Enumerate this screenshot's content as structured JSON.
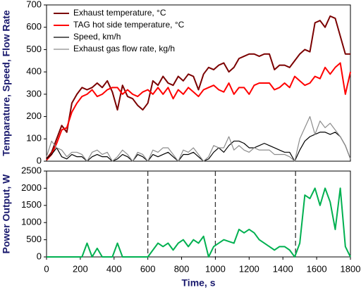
{
  "chart_data": [
    {
      "type": "line",
      "ylabel": "Temparature, Speed, Flow Rate",
      "x": [
        0,
        30,
        60,
        90,
        120,
        150,
        180,
        210,
        240,
        270,
        300,
        330,
        360,
        390,
        420,
        450,
        480,
        510,
        540,
        570,
        600,
        630,
        660,
        690,
        720,
        750,
        780,
        810,
        840,
        870,
        900,
        930,
        960,
        990,
        1020,
        1050,
        1080,
        1110,
        1140,
        1170,
        1200,
        1230,
        1260,
        1290,
        1320,
        1350,
        1380,
        1410,
        1440,
        1470,
        1500,
        1530,
        1560,
        1590,
        1620,
        1650,
        1680,
        1710,
        1740,
        1770,
        1800
      ],
      "xlim": [
        0,
        1800
      ],
      "ylim": [
        0,
        700
      ],
      "yticks": [
        0,
        100,
        200,
        300,
        400,
        500,
        600,
        700
      ],
      "legend": "upper left",
      "series": [
        {
          "name": "Exhaust temperature, °C",
          "color": "#7b0000",
          "values": [
            10,
            40,
            100,
            160,
            130,
            260,
            300,
            330,
            320,
            330,
            350,
            330,
            360,
            310,
            230,
            340,
            290,
            280,
            250,
            230,
            260,
            360,
            340,
            380,
            350,
            340,
            380,
            360,
            390,
            380,
            320,
            390,
            420,
            410,
            430,
            440,
            400,
            420,
            460,
            470,
            480,
            480,
            470,
            480,
            480,
            410,
            430,
            430,
            420,
            450,
            480,
            500,
            490,
            620,
            630,
            600,
            650,
            640,
            560,
            480,
            480
          ]
        },
        {
          "name": "TAG hot side temperature, °C",
          "color": "#ff0000",
          "values": [
            5,
            30,
            80,
            140,
            150,
            220,
            260,
            290,
            300,
            320,
            290,
            300,
            320,
            330,
            330,
            300,
            320,
            300,
            290,
            310,
            320,
            300,
            330,
            300,
            330,
            280,
            320,
            300,
            330,
            310,
            290,
            320,
            330,
            340,
            320,
            310,
            350,
            300,
            330,
            330,
            300,
            340,
            350,
            350,
            350,
            320,
            330,
            350,
            330,
            380,
            360,
            340,
            350,
            380,
            370,
            420,
            390,
            420,
            440,
            300,
            400
          ]
        },
        {
          "name": "Speed, km/h",
          "color": "#000000",
          "values": [
            10,
            30,
            60,
            20,
            10,
            30,
            20,
            20,
            0,
            20,
            30,
            20,
            20,
            0,
            10,
            30,
            20,
            0,
            30,
            20,
            0,
            30,
            20,
            30,
            40,
            20,
            0,
            30,
            30,
            40,
            20,
            0,
            10,
            40,
            60,
            40,
            70,
            90,
            90,
            80,
            60,
            60,
            70,
            80,
            70,
            60,
            50,
            40,
            40,
            0,
            50,
            90,
            110,
            120,
            130,
            130,
            120,
            130,
            110,
            70,
            10
          ]
        },
        {
          "name": "Exhaust gas flow rate, kg/h",
          "color": "#8c8c8c",
          "values": [
            20,
            90,
            60,
            50,
            20,
            40,
            40,
            30,
            0,
            40,
            50,
            30,
            40,
            0,
            20,
            50,
            30,
            0,
            40,
            30,
            0,
            50,
            40,
            60,
            60,
            30,
            0,
            50,
            40,
            60,
            30,
            0,
            20,
            70,
            60,
            60,
            110,
            50,
            70,
            50,
            40,
            60,
            50,
            50,
            50,
            30,
            30,
            30,
            20,
            0,
            100,
            150,
            200,
            120,
            180,
            150,
            170,
            140,
            110,
            70,
            10
          ]
        }
      ]
    },
    {
      "type": "line",
      "xlabel": "Time, s",
      "ylabel": "Power Output, W",
      "x": [
        0,
        30,
        60,
        90,
        120,
        150,
        180,
        210,
        240,
        270,
        300,
        330,
        360,
        390,
        420,
        450,
        480,
        510,
        540,
        570,
        600,
        630,
        660,
        690,
        720,
        750,
        780,
        810,
        840,
        870,
        900,
        930,
        960,
        990,
        1020,
        1050,
        1080,
        1110,
        1140,
        1170,
        1200,
        1230,
        1260,
        1290,
        1320,
        1350,
        1380,
        1410,
        1440,
        1470,
        1500,
        1530,
        1560,
        1590,
        1620,
        1650,
        1680,
        1710,
        1740,
        1770,
        1800
      ],
      "xlim": [
        0,
        1800
      ],
      "xticks": [
        0,
        200,
        400,
        600,
        800,
        1000,
        1200,
        1400,
        1600,
        1800
      ],
      "ylim": [
        0,
        2500
      ],
      "yticks": [
        0,
        500,
        1000,
        1500,
        2000,
        2500
      ],
      "vlines": [
        600,
        1000,
        1475
      ],
      "series": [
        {
          "color": "#00b050",
          "values": [
            0,
            0,
            0,
            0,
            0,
            0,
            0,
            0,
            400,
            0,
            250,
            0,
            0,
            0,
            400,
            0,
            0,
            0,
            0,
            0,
            0,
            200,
            400,
            300,
            400,
            200,
            400,
            500,
            300,
            500,
            400,
            600,
            0,
            300,
            400,
            500,
            450,
            400,
            800,
            700,
            800,
            700,
            500,
            400,
            300,
            200,
            300,
            300,
            200,
            0,
            400,
            1800,
            1700,
            2000,
            1500,
            2000,
            1600,
            800,
            2000,
            300,
            0
          ]
        }
      ]
    }
  ]
}
